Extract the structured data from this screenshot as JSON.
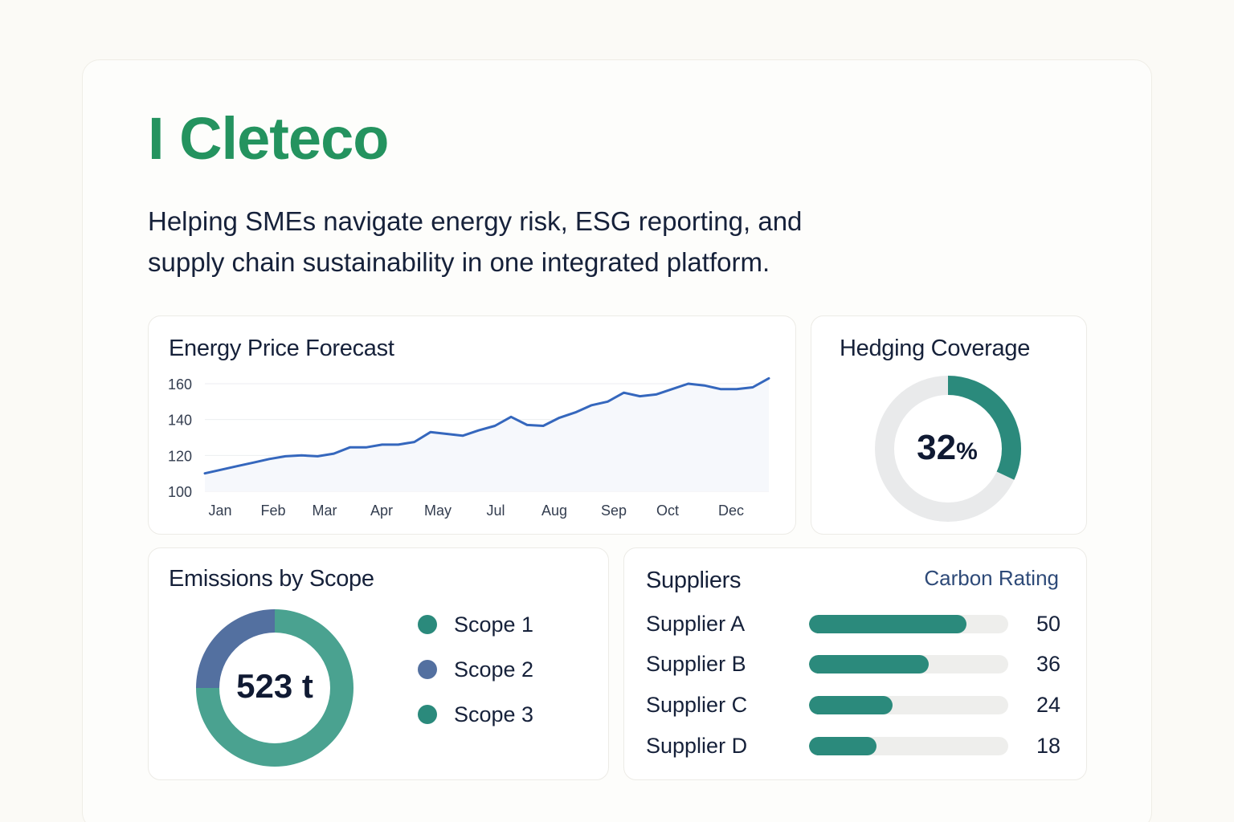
{
  "brand": {
    "name": "I Cleteco"
  },
  "tagline": {
    "line1": "Helping SMEs navigate energy risk, ESG reporting, and",
    "line2": "supply chain sustainability in one integrated platform."
  },
  "colors": {
    "brand_green": "#24935f",
    "teal": "#2b8a7c",
    "line_blue": "#3567bd",
    "scope_teal": "#4aa290",
    "scope_blue": "#5370a0",
    "track_grey": "#e9eaeb"
  },
  "energy": {
    "title": "Energy Price Forecast",
    "chart_data": {
      "type": "line",
      "title": "Energy Price Forecast",
      "ylim": [
        100,
        160
      ],
      "yticks": [
        100,
        120,
        140,
        160
      ],
      "month_labels": [
        "Jan",
        "Feb",
        "Mar",
        "Apr",
        "May",
        "Jul",
        "Aug",
        "Sep",
        "Oct",
        "Dec"
      ],
      "grid": true,
      "fill": "area",
      "series": [
        {
          "values": [
            110,
            112,
            114,
            116,
            118,
            119.5,
            120,
            119.5,
            121,
            124.5,
            124.5,
            126,
            126,
            127.5,
            133,
            132,
            131,
            134,
            136.5,
            141.5,
            137,
            136.5,
            141,
            144,
            148,
            150,
            155,
            153,
            154,
            157,
            160,
            159,
            157,
            157,
            158,
            163
          ]
        }
      ]
    }
  },
  "hedging": {
    "title": "Hedging Coverage",
    "value": "32",
    "unit": "%",
    "fraction": 0.32
  },
  "emissions": {
    "title": "Emissions by Scope",
    "total": "523 t",
    "chart_data": {
      "type": "pie",
      "donut": true,
      "slices": [
        {
          "label": "Scope 1",
          "share": 0.75,
          "color": "#4aa290"
        },
        {
          "label": "Scope 2",
          "share": 0.25,
          "color": "#5370a0"
        }
      ]
    },
    "legend": [
      {
        "label": "Scope 1",
        "color": "#2b8a7c"
      },
      {
        "label": "Scope 2",
        "color": "#5370a0"
      },
      {
        "label": "Scope 3",
        "color": "#2b8a7c"
      }
    ]
  },
  "suppliers": {
    "title": "Suppliers",
    "rating_header": "Carbon Rating",
    "rows": [
      {
        "name": "Supplier A",
        "value": 50,
        "fill": 0.79
      },
      {
        "name": "Supplier B",
        "value": 36,
        "fill": 0.6
      },
      {
        "name": "Supplier C",
        "value": 24,
        "fill": 0.42
      },
      {
        "name": "Supplier D",
        "value": 18,
        "fill": 0.34
      }
    ]
  }
}
